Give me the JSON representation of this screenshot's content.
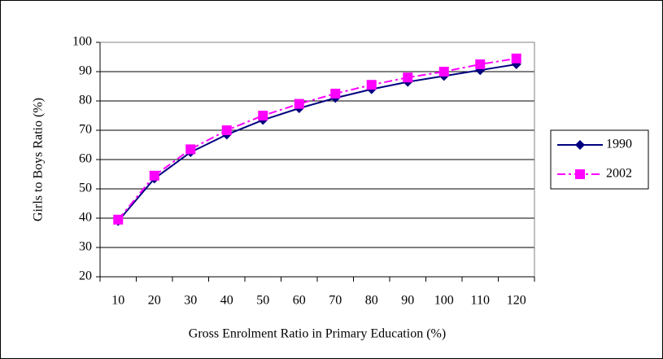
{
  "chart_data": {
    "type": "line",
    "x_label": "Gross Enrolment Ratio in Primary Education (%)",
    "y_label": "Girls to Boys Ratio (%)",
    "categories": [
      "10",
      "20",
      "30",
      "40",
      "50",
      "60",
      "70",
      "80",
      "90",
      "100",
      "110",
      "120"
    ],
    "series": [
      {
        "name": "1990",
        "color": "#000080",
        "marker": "diamond",
        "dash": "solid",
        "values": [
          39,
          53.5,
          62.5,
          68.5,
          73.5,
          77.5,
          81,
          84,
          86.5,
          88.5,
          90.5,
          92.5
        ]
      },
      {
        "name": "2002",
        "color": "#ff00ff",
        "marker": "square",
        "dash": "dashdot",
        "values": [
          39.5,
          54.5,
          63.5,
          70,
          75,
          79,
          82.5,
          85.5,
          88,
          90,
          92.5,
          94.5
        ]
      }
    ],
    "ylim": [
      20,
      100
    ],
    "yticks": [
      20,
      30,
      40,
      50,
      60,
      70,
      80,
      90,
      100
    ],
    "grid": true,
    "legend": "right"
  }
}
